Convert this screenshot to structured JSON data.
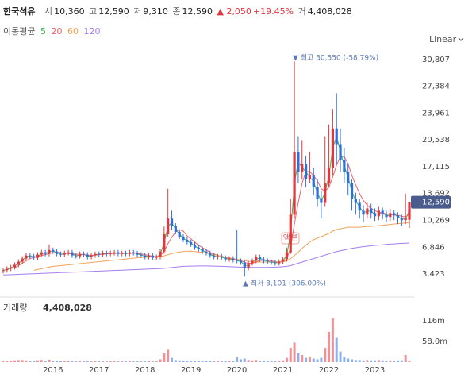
{
  "header": {
    "name": "한국석유",
    "stats": [
      {
        "label": "시",
        "value": "10,360"
      },
      {
        "label": "고",
        "value": "12,590"
      },
      {
        "label": "저",
        "value": "9,310"
      },
      {
        "label": "종",
        "value": "12,590"
      }
    ],
    "change": "▲ 2,050",
    "change_pct": "+19.45%",
    "volume_label": "거",
    "volume_value": "4,408,028",
    "ma_title": "이동평균",
    "scale_label": "Linear"
  },
  "chart_data": {
    "type": "candlestick",
    "grid": false,
    "up_color": "#e2373f",
    "down_color": "#2f6fdd",
    "categories": [
      null,
      null,
      null,
      null,
      null,
      null,
      null,
      null,
      null,
      null,
      null,
      null,
      null,
      "2016",
      null,
      null,
      null,
      null,
      null,
      null,
      null,
      null,
      null,
      null,
      null,
      "2017",
      null,
      null,
      null,
      null,
      null,
      null,
      null,
      null,
      null,
      null,
      null,
      "2018",
      null,
      null,
      null,
      null,
      null,
      null,
      null,
      null,
      null,
      null,
      null,
      "2019",
      null,
      null,
      null,
      null,
      null,
      null,
      null,
      null,
      null,
      null,
      null,
      "2020",
      null,
      null,
      null,
      null,
      null,
      null,
      null,
      null,
      null,
      null,
      null,
      "2021",
      null,
      null,
      null,
      null,
      null,
      null,
      null,
      null,
      null,
      null,
      null,
      "2022",
      null,
      null,
      null,
      null,
      null,
      null,
      null,
      null,
      null,
      null,
      null,
      "2023",
      null,
      null,
      null,
      null,
      null,
      null,
      null,
      null,
      null
    ],
    "open": [
      3800,
      3900,
      4100,
      4300,
      4600,
      5000,
      5400,
      5800,
      5700,
      5500,
      5900,
      6200,
      6000,
      6500,
      6300,
      6000,
      5900,
      6100,
      6200,
      5800,
      5700,
      6000,
      5900,
      5600,
      5800,
      6000,
      5900,
      6100,
      6000,
      6100,
      6200,
      6000,
      6100,
      6000,
      6200,
      6100,
      5900,
      5800,
      5600,
      5800,
      5500,
      5600,
      6300,
      8500,
      10500,
      9500,
      8800,
      8200,
      7800,
      7500,
      7200,
      6800,
      6600,
      6300,
      6100,
      5800,
      5600,
      5700,
      5500,
      5300,
      5400,
      5200,
      5100,
      4900,
      4200,
      4800,
      5100,
      5600,
      5300,
      5100,
      5000,
      4900,
      4800,
      5000,
      5300,
      6200,
      11000,
      19000,
      16500,
      17500,
      15500,
      16000,
      14500,
      13000,
      12500,
      15000,
      17000,
      22000,
      20000,
      18000,
      16500,
      15000,
      13000,
      12500,
      11500,
      11000,
      11800,
      11200,
      10800,
      11500,
      11000,
      10700,
      11200,
      10900,
      10600,
      10300,
      10360
    ],
    "high": [
      4200,
      4400,
      4600,
      4900,
      5300,
      5700,
      6100,
      6100,
      6000,
      6200,
      6500,
      6500,
      7200,
      6800,
      6600,
      6300,
      6400,
      6500,
      6500,
      6100,
      6300,
      6300,
      6200,
      6100,
      6300,
      6300,
      6400,
      6400,
      6400,
      6500,
      6500,
      6400,
      6400,
      6500,
      6500,
      6400,
      6200,
      6100,
      6100,
      6100,
      5900,
      6600,
      9500,
      14300,
      11500,
      9900,
      9100,
      8500,
      8100,
      7800,
      7500,
      7100,
      6900,
      6600,
      6400,
      6100,
      6000,
      6000,
      5800,
      5700,
      5700,
      9000,
      5400,
      5200,
      5100,
      5400,
      5900,
      5900,
      5600,
      5400,
      5300,
      5200,
      5300,
      5600,
      6800,
      13000,
      30550,
      21000,
      20500,
      18500,
      19000,
      17000,
      15500,
      14000,
      21000,
      22500,
      24500,
      26500,
      22000,
      19500,
      17500,
      15500,
      13800,
      13000,
      12200,
      12500,
      12400,
      11800,
      12000,
      11900,
      11500,
      11700,
      11600,
      11300,
      11000,
      13700,
      12590
    ],
    "low": [
      3500,
      3600,
      3800,
      4000,
      4300,
      4700,
      5100,
      5400,
      5200,
      5200,
      5600,
      5700,
      5700,
      6000,
      5700,
      5600,
      5600,
      5800,
      5500,
      5400,
      5400,
      5600,
      5300,
      5300,
      5500,
      5600,
      5600,
      5700,
      5700,
      5800,
      5700,
      5700,
      5700,
      5700,
      5800,
      5600,
      5500,
      5300,
      5300,
      5200,
      5200,
      5300,
      6000,
      8200,
      9000,
      8500,
      7900,
      7500,
      7200,
      6900,
      6500,
      6300,
      6000,
      5800,
      5500,
      5300,
      5300,
      5200,
      5000,
      5000,
      4900,
      4800,
      4600,
      3101,
      3900,
      4500,
      4800,
      5000,
      4800,
      4700,
      4600,
      4500,
      4500,
      4700,
      5000,
      6000,
      10500,
      15000,
      15500,
      14500,
      15000,
      13500,
      12000,
      10500,
      12000,
      14500,
      16000,
      17500,
      16500,
      15000,
      13500,
      11500,
      11000,
      10500,
      10000,
      10500,
      10500,
      10200,
      10300,
      10400,
      10100,
      10200,
      10300,
      9800,
      9600,
      9800,
      9310
    ],
    "close": [
      3900,
      4100,
      4300,
      4600,
      5000,
      5400,
      5800,
      5700,
      5500,
      5900,
      6200,
      6000,
      6500,
      6300,
      6000,
      5900,
      6100,
      6200,
      5800,
      5700,
      6000,
      5900,
      5600,
      5800,
      6000,
      5900,
      6100,
      6000,
      6100,
      6200,
      6000,
      6100,
      6000,
      6200,
      6100,
      5900,
      5800,
      5600,
      5800,
      5500,
      5600,
      6300,
      8500,
      10500,
      9500,
      8800,
      8200,
      7800,
      7500,
      7200,
      6800,
      6600,
      6300,
      6100,
      5800,
      5600,
      5700,
      5500,
      5300,
      5400,
      5200,
      5100,
      4900,
      4200,
      4800,
      5100,
      5600,
      5300,
      5100,
      5000,
      4900,
      4800,
      5000,
      5300,
      6200,
      11000,
      19000,
      16500,
      17500,
      15500,
      16000,
      14500,
      13000,
      12500,
      15000,
      17000,
      22000,
      20000,
      18000,
      16500,
      15000,
      13000,
      12500,
      11500,
      11000,
      11800,
      11200,
      10800,
      11500,
      11000,
      10700,
      11200,
      10900,
      10600,
      10300,
      10540,
      12590
    ],
    "series": [
      {
        "name": "5",
        "color": "#3cb54a",
        "values": [
          3900,
          4000,
          4200,
          4450,
          4800,
          5200,
          5600,
          5750,
          5600,
          5700,
          6050,
          6100,
          6250,
          6400,
          6150,
          5950,
          6000,
          6150,
          6000,
          5750,
          5850,
          5950,
          5750,
          5700,
          5900,
          5950,
          6000,
          6050,
          6050,
          6150,
          6100,
          6050,
          6050,
          6100,
          6150,
          6000,
          5850,
          5700,
          5700,
          5650,
          5550,
          5950,
          7400,
          9500,
          10000,
          9150,
          8500,
          8000,
          7650,
          7350,
          7000,
          6700,
          6450,
          6200,
          5950,
          5700,
          5650,
          5600,
          5400,
          5350,
          5300,
          5150,
          5000,
          4550,
          4500,
          4950,
          5350,
          5450,
          5200,
          5050,
          4950,
          4850,
          4900,
          5150,
          5750,
          8600,
          15000,
          17750,
          17000,
          16500,
          15750,
          15250,
          13750,
          12750,
          13750,
          16000,
          19500,
          21000,
          19000,
          17250,
          15750,
          14000,
          12750,
          12000,
          11250,
          11400,
          11500,
          11000,
          11150,
          11250,
          10850,
          10950,
          11050,
          10750,
          10450,
          10420,
          11560
        ]
      },
      {
        "name": "20",
        "color": "#ee6262",
        "values": [
          null,
          null,
          null,
          4200,
          4500,
          4800,
          5100,
          5400,
          5550,
          5650,
          5800,
          5900,
          6050,
          6150,
          6200,
          6150,
          6100,
          6050,
          6000,
          5950,
          5950,
          5900,
          5850,
          5800,
          5850,
          5900,
          5950,
          6000,
          6050,
          6050,
          6100,
          6100,
          6050,
          6100,
          6100,
          6050,
          6000,
          5900,
          5800,
          5700,
          5650,
          5800,
          6300,
          7300,
          8100,
          8800,
          9100,
          8900,
          8300,
          7900,
          7500,
          7100,
          6800,
          6500,
          6200,
          6000,
          5800,
          5700,
          5550,
          5450,
          5350,
          5250,
          5150,
          4900,
          4800,
          4800,
          4950,
          5150,
          5200,
          5200,
          5100,
          5000,
          4950,
          5000,
          5300,
          6800,
          9800,
          12500,
          15000,
          16500,
          16500,
          16000,
          15300,
          14300,
          14000,
          14500,
          15800,
          17300,
          18400,
          18400,
          17500,
          16000,
          14800,
          13700,
          12800,
          12200,
          11800,
          11500,
          11300,
          11200,
          11100,
          11000,
          11000,
          10900,
          10800,
          10700,
          11100
        ]
      },
      {
        "name": "60",
        "color": "#f0a35a",
        "values": [
          null,
          null,
          null,
          null,
          null,
          null,
          null,
          null,
          3900,
          4000,
          4100,
          4200,
          4300,
          4400,
          4450,
          4500,
          4550,
          4600,
          4650,
          4700,
          4750,
          4800,
          4850,
          4900,
          4950,
          5000,
          5050,
          5100,
          5150,
          5200,
          5250,
          5300,
          5350,
          5400,
          5450,
          5500,
          5550,
          5550,
          5600,
          5600,
          5600,
          5650,
          5750,
          5900,
          6050,
          6150,
          6250,
          6300,
          6350,
          6350,
          6300,
          6250,
          6200,
          6100,
          6000,
          5900,
          5800,
          5700,
          5600,
          5500,
          5400,
          5300,
          5250,
          5150,
          5050,
          5000,
          4950,
          4950,
          4950,
          4950,
          4950,
          4950,
          4950,
          5000,
          5100,
          5400,
          5800,
          6200,
          6700,
          7100,
          7500,
          7800,
          8000,
          8200,
          8400,
          8600,
          8900,
          9100,
          9200,
          9300,
          9400,
          9400,
          9400,
          9400,
          9450,
          9500,
          9500,
          9550,
          9600,
          9650,
          9700,
          9750,
          9800,
          9850,
          9900,
          9950,
          10000
        ]
      },
      {
        "name": "120",
        "color": "#a77cf0",
        "values": [
          3300,
          3320,
          3340,
          3360,
          3380,
          3400,
          3420,
          3440,
          3460,
          3480,
          3500,
          3520,
          3540,
          3560,
          3580,
          3600,
          3620,
          3640,
          3660,
          3680,
          3700,
          3720,
          3740,
          3760,
          3780,
          3800,
          3820,
          3840,
          3860,
          3880,
          3900,
          3920,
          3940,
          3960,
          3980,
          4000,
          4020,
          4040,
          4060,
          4080,
          4100,
          4120,
          4150,
          4200,
          4250,
          4300,
          4350,
          4400,
          4420,
          4440,
          4450,
          4460,
          4460,
          4460,
          4450,
          4440,
          4420,
          4400,
          4380,
          4360,
          4340,
          4320,
          4300,
          4280,
          4270,
          4260,
          4260,
          4260,
          4260,
          4270,
          4280,
          4300,
          4320,
          4350,
          4400,
          4500,
          4650,
          4800,
          4950,
          5100,
          5250,
          5400,
          5550,
          5700,
          5850,
          6000,
          6150,
          6300,
          6400,
          6500,
          6600,
          6700,
          6780,
          6850,
          6920,
          6980,
          7030,
          7080,
          7120,
          7160,
          7200,
          7240,
          7270,
          7300,
          7330,
          7360,
          7380
        ]
      }
    ],
    "ylim": [
      900,
      32100
    ],
    "yticks": [
      {
        "value": 3423,
        "label": "3,423"
      },
      {
        "value": 6846,
        "label": "6,846"
      },
      {
        "value": 10269,
        "label": "10,269"
      },
      {
        "value": 13692,
        "label": "13,692"
      },
      {
        "value": 17115,
        "label": "17,115"
      },
      {
        "value": 20538,
        "label": "20,538"
      },
      {
        "value": 23961,
        "label": "23,961"
      },
      {
        "value": 27384,
        "label": "27,384"
      },
      {
        "value": 30807,
        "label": "30,807"
      }
    ],
    "current_price_label": "12,590",
    "current_color": "#4a5c8c",
    "max_label": "▼ 최고 30,550 (-58.79%)",
    "min_label": "▲ 최저 3,101 (306.00%)",
    "annotation_color": "#5a78b8",
    "split_label": "액분",
    "volume": {
      "title": "거래량",
      "title_value": "4,408,028",
      "ylim": [
        0,
        170
      ],
      "yticks": [
        {
          "value": 58,
          "label": "58.0m"
        },
        {
          "value": 116,
          "label": "116m"
        }
      ],
      "values": [
        3,
        3,
        4,
        5,
        6,
        6,
        5,
        4,
        3,
        5,
        6,
        4,
        7,
        4,
        3,
        3,
        3,
        3,
        3,
        2,
        3,
        3,
        3,
        2,
        3,
        3,
        3,
        2,
        2,
        3,
        2,
        2,
        2,
        3,
        2,
        2,
        2,
        2,
        3,
        2,
        2,
        8,
        25,
        35,
        12,
        6,
        5,
        4,
        4,
        3,
        3,
        3,
        3,
        3,
        3,
        3,
        3,
        3,
        3,
        3,
        3,
        15,
        8,
        10,
        6,
        5,
        6,
        4,
        4,
        3,
        3,
        3,
        3,
        5,
        12,
        40,
        55,
        25,
        20,
        12,
        14,
        10,
        8,
        12,
        40,
        85,
        125,
        70,
        30,
        15,
        10,
        8,
        6,
        6,
        5,
        6,
        5,
        5,
        6,
        5,
        4,
        5,
        4,
        5,
        5,
        20,
        4.4
      ]
    }
  }
}
